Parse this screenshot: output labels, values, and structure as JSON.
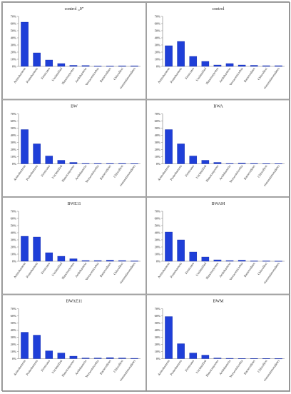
{
  "chart_data": [
    {
      "type": "bar",
      "title": "control „0”",
      "categories": [
        "Actinobacteria",
        "Proteobacteria",
        "Firmicutes",
        "Unclassified",
        "Planctomycetes",
        "Acidobacteria",
        "Verrucomicrobia",
        "Bacteroidetes",
        "Chloroflexi",
        "Gemmatimonadetes"
      ],
      "values": [
        62,
        19,
        9,
        4,
        1.5,
        1.2,
        0.5,
        0.5,
        0.8,
        0.8
      ],
      "ylim": [
        0,
        70
      ],
      "yticks": [
        "0%",
        "10%",
        "20%",
        "30%",
        "40%",
        "50%",
        "60%",
        "70%"
      ]
    },
    {
      "type": "bar",
      "title": "control",
      "categories": [
        "Actinobacteria",
        "Proteobacteria",
        "Firmicutes",
        "Unclassified",
        "Planctomycetes",
        "Acidobacteria",
        "Verrucomicrobia",
        "Bacteroidetes",
        "Chloroflexi",
        "Gemmatimonadetes"
      ],
      "values": [
        29,
        35,
        14,
        7,
        2,
        4,
        2,
        1.5,
        1,
        1
      ],
      "ylim": [
        0,
        70
      ],
      "yticks": [
        "0%",
        "10%",
        "20%",
        "30%",
        "40%",
        "50%",
        "60%",
        "70%"
      ]
    },
    {
      "type": "bar",
      "title": "BW",
      "categories": [
        "Actinobacteria",
        "Proteobacteria",
        "Firmicutes",
        "Unclassified",
        "Planctomycetes",
        "Acidobacteria",
        "Verrucomicrobia",
        "Bacteroidetes",
        "Chloroflexi",
        "Gemmatimonadetes"
      ],
      "values": [
        48,
        28,
        11,
        5,
        2,
        0.5,
        0.5,
        0.5,
        0.5,
        0.3
      ],
      "ylim": [
        0,
        70
      ],
      "yticks": [
        "0%",
        "10%",
        "20%",
        "30%",
        "40%",
        "50%",
        "60%",
        "70%"
      ]
    },
    {
      "type": "bar",
      "title": "BWA",
      "categories": [
        "Actinobacteria",
        "Proteobacteria",
        "Firmicutes",
        "Unclassified",
        "Planctomycetes",
        "Acidobacteria",
        "Verrucomicrobia",
        "Bacteroidetes",
        "Chloroflexi",
        "Gemmatimonadetes"
      ],
      "values": [
        48,
        28,
        11,
        5,
        2,
        0.5,
        1,
        0.5,
        0.3,
        0.3
      ],
      "ylim": [
        0,
        70
      ],
      "yticks": [
        "0%",
        "10%",
        "20%",
        "30%",
        "40%",
        "50%",
        "60%",
        "70%"
      ]
    },
    {
      "type": "bar",
      "title": "BWE11",
      "categories": [
        "Actinobacteria",
        "Proteobacteria",
        "Firmicutes",
        "Unclassified",
        "Planctomycetes",
        "Acidobacteria",
        "Verrucomicrobia",
        "Bacteroidetes",
        "Chloroflexi",
        "Gemmatimonadetes"
      ],
      "values": [
        35,
        34,
        12,
        7,
        3.5,
        1,
        1,
        1.5,
        1,
        0.5
      ],
      "ylim": [
        0,
        70
      ],
      "yticks": [
        "0%",
        "10%",
        "20%",
        "30%",
        "40%",
        "50%",
        "60%",
        "70%"
      ]
    },
    {
      "type": "bar",
      "title": "BWAM",
      "categories": [
        "Actinobacteria",
        "Proteobacteria",
        "Firmicutes",
        "Unclassified",
        "Planctomycetes",
        "Acidobacteria",
        "Verrucomicrobia",
        "Bacteroidetes",
        "Chloroflexi",
        "Gemmatimonadetes"
      ],
      "values": [
        41,
        30,
        13,
        6,
        2,
        1,
        1.5,
        0.5,
        0.5,
        0.3
      ],
      "ylim": [
        0,
        70
      ],
      "yticks": [
        "0%",
        "10%",
        "20%",
        "30%",
        "40%",
        "50%",
        "60%",
        "70%"
      ]
    },
    {
      "type": "bar",
      "title": "BWAE11",
      "categories": [
        "Actinobacteria",
        "Proteobacteria",
        "Firmicutes",
        "Unclassified",
        "Planctomycetes",
        "Acidobacteria",
        "Verrucomicrobia",
        "Bacteroidetes",
        "Chloroflexi",
        "Gemmatimonadetes"
      ],
      "values": [
        37,
        33,
        11,
        8,
        3.5,
        1,
        1,
        1.5,
        1,
        0.5
      ],
      "ylim": [
        0,
        70
      ],
      "yticks": [
        "0%",
        "10%",
        "20%",
        "30%",
        "40%",
        "50%",
        "60%",
        "70%"
      ]
    },
    {
      "type": "bar",
      "title": "BWM",
      "categories": [
        "Actinobacteria",
        "Proteobacteria",
        "Firmicutes",
        "Unclassified",
        "Planctomycetes",
        "Acidobacteria",
        "Verrucomicrobia",
        "Bacteroidetes",
        "Chloroflexi",
        "Gemmatimonadetes"
      ],
      "values": [
        59,
        21,
        8,
        5,
        1,
        0.5,
        0.3,
        0.3,
        0.3,
        0.2
      ],
      "ylim": [
        0,
        70
      ],
      "yticks": [
        "0%",
        "10%",
        "20%",
        "30%",
        "40%",
        "50%",
        "60%",
        "70%"
      ]
    }
  ],
  "colors": {
    "bar": "#1f3fd8",
    "bar_edge": "#0a1f9a",
    "panel_border": "#8c8c8c",
    "axis": "#7a7a7a"
  }
}
